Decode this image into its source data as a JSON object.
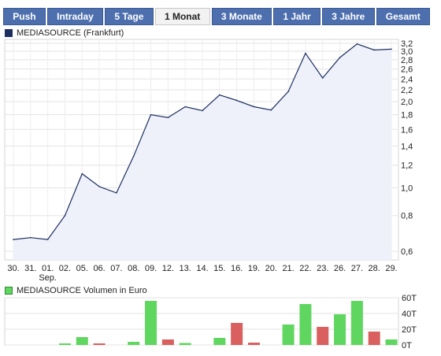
{
  "tabs": [
    {
      "label": "Push",
      "active": false
    },
    {
      "label": "Intraday",
      "active": false
    },
    {
      "label": "5 Tage",
      "active": false
    },
    {
      "label": "1 Monat",
      "active": true
    },
    {
      "label": "3 Monate",
      "active": false
    },
    {
      "label": "1 Jahr",
      "active": false
    },
    {
      "label": "3 Jahre",
      "active": false
    },
    {
      "label": "Gesamt",
      "active": false
    }
  ],
  "price_legend": "MEDIASOURCE (Frankfurt)",
  "volume_legend": "MEDIASOURCE Volumen in Euro",
  "month_label": "Sep.",
  "colors": {
    "tab_bg": "#4d6fae",
    "line": "#1d2f60",
    "area": "#eef0fa",
    "volume_up": "#5fd65f",
    "volume_down": "#d9605f"
  },
  "chart_data": [
    {
      "type": "area",
      "title": "MEDIASOURCE (Frankfurt)",
      "y_scale": "log",
      "ylim": [
        0.56,
        3.3
      ],
      "y_ticks": [
        "0,6",
        "0,8",
        "1,0",
        "1,2",
        "1,4",
        "1,6",
        "1,8",
        "2,0",
        "2,2",
        "2,4",
        "2,6",
        "2,8",
        "3,0",
        "3,2"
      ],
      "y_tick_values": [
        0.6,
        0.8,
        1.0,
        1.2,
        1.4,
        1.6,
        1.8,
        2.0,
        2.2,
        2.4,
        2.6,
        2.8,
        3.0,
        3.2
      ],
      "categories": [
        "30.",
        "31.",
        "01.",
        "02.",
        "05.",
        "06.",
        "07.",
        "08.",
        "09.",
        "12.",
        "13.",
        "14.",
        "15.",
        "16.",
        "19.",
        "20.",
        "21.",
        "22.",
        "23.",
        "26.",
        "27.",
        "28.",
        "29."
      ],
      "series": [
        {
          "values": [
            0.66,
            0.67,
            0.66,
            0.8,
            1.12,
            1.01,
            0.96,
            1.29,
            1.8,
            1.76,
            1.92,
            1.86,
            2.11,
            2.02,
            1.92,
            1.87,
            2.17,
            2.95,
            2.42,
            2.85,
            3.18,
            3.03,
            3.05
          ]
        }
      ],
      "grid": true
    },
    {
      "type": "bar",
      "title": "MEDIASOURCE Volumen in Euro",
      "ylim": [
        0,
        60000
      ],
      "y_ticks": [
        "60T",
        "40T",
        "20T",
        "0T"
      ],
      "y_tick_values": [
        60000,
        40000,
        20000,
        0
      ],
      "categories": [
        "30.",
        "31.",
        "01.",
        "02.",
        "05.",
        "06.",
        "07.",
        "08.",
        "09.",
        "12.",
        "13.",
        "14.",
        "15.",
        "16.",
        "19.",
        "20.",
        "21.",
        "22.",
        "23.",
        "26.",
        "27.",
        "28.",
        "29."
      ],
      "values": [
        0,
        0,
        0,
        2000,
        10000,
        2000,
        0,
        4000,
        56000,
        7000,
        2500,
        0,
        9000,
        28000,
        3000,
        0,
        26000,
        52000,
        23000,
        39000,
        56000,
        17000,
        7000
      ],
      "directions": [
        "none",
        "none",
        "none",
        "up",
        "up",
        "down",
        "none",
        "up",
        "up",
        "down",
        "up",
        "none",
        "up",
        "down",
        "down",
        "none",
        "up",
        "up",
        "down",
        "up",
        "up",
        "down",
        "up"
      ],
      "grid": true
    }
  ]
}
